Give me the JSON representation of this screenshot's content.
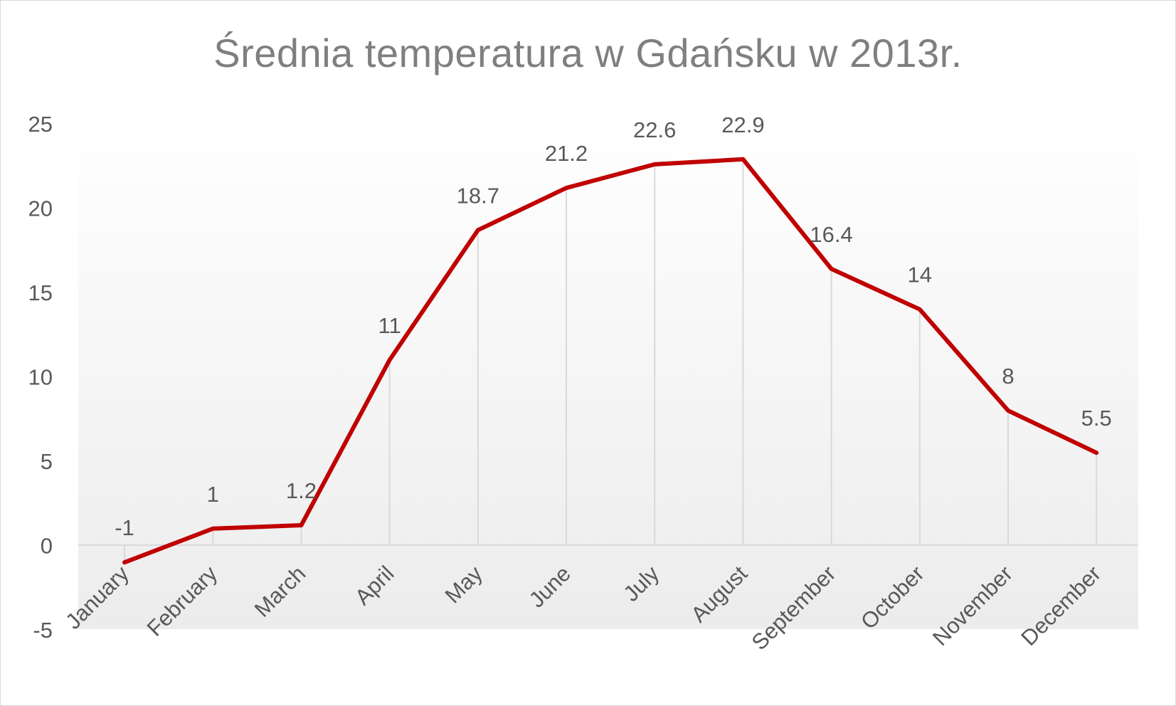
{
  "chart_data": {
    "type": "line",
    "title": "Średnia temperatura w Gdańsku w 2013r.",
    "categories": [
      "January",
      "February",
      "March",
      "April",
      "May",
      "June",
      "July",
      "August",
      "September",
      "October",
      "November",
      "December"
    ],
    "series": [
      {
        "values": [
          -1,
          1,
          1.2,
          11,
          18.7,
          21.2,
          22.6,
          22.9,
          16.4,
          14,
          8,
          5.5
        ],
        "color": "#c00000"
      }
    ],
    "data_labels": [
      "-1",
      "1",
      "1.2",
      "11",
      "18.7",
      "21.2",
      "22.6",
      "22.9",
      "16.4",
      "14",
      "8",
      "5.5"
    ],
    "yticks": [
      "25",
      "20",
      "15",
      "10",
      "5",
      "0",
      "-5"
    ],
    "ylim": [
      -5,
      25
    ],
    "grid": "vertical drop lines",
    "legend": "none",
    "colors": {
      "line": "#c00000",
      "text": "#595959",
      "title": "#7f7f7f",
      "gridline": "#d9d9d9"
    }
  }
}
